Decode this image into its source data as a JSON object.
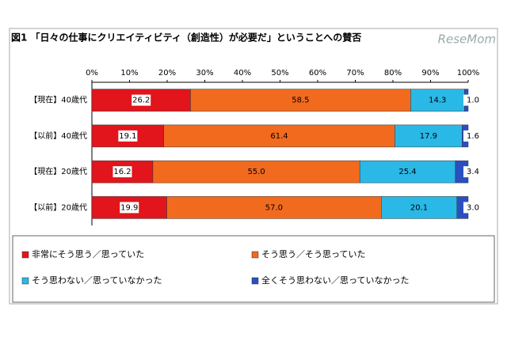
{
  "chart_data": {
    "type": "stacked-bar-horizontal",
    "title": "図1 「日々の仕事にクリエイティビティ（創造性）が必要だ」ということへの賛否",
    "watermark": "ReseMom",
    "categories": [
      "【現在】40歳代",
      "【以前】40歳代",
      "【現在】20歳代",
      "【以前】20歳代"
    ],
    "series": [
      {
        "name": "非常にそう思う／思っていた",
        "color": "#e2141c",
        "values": [
          26.2,
          19.1,
          16.2,
          19.9
        ],
        "value_labels": [
          "26.2",
          "19.1",
          "16.2",
          "19.9"
        ]
      },
      {
        "name": "そう思う／そう思っていた",
        "color": "#f26a1e",
        "values": [
          58.5,
          61.4,
          55.0,
          57.0
        ],
        "value_labels": [
          "58.5",
          "61.4",
          "55.0",
          "57.0"
        ]
      },
      {
        "name": "そう思わない／思っていなかった",
        "color": "#2ab8e6",
        "values": [
          14.3,
          17.9,
          25.4,
          20.1
        ],
        "value_labels": [
          "14.3",
          "17.9",
          "25.4",
          "20.1"
        ]
      },
      {
        "name": "全くそう思わない／思っていなかった",
        "color": "#2a4fc0",
        "values": [
          1.0,
          1.6,
          3.4,
          3.0
        ],
        "value_labels": [
          "1.0",
          "1.6",
          "3.4",
          "3.0"
        ]
      }
    ],
    "xlim": [
      0,
      100
    ],
    "xticks": [
      {
        "value": 0,
        "label": "0%"
      },
      {
        "value": 10,
        "label": "10%"
      },
      {
        "value": 20,
        "label": "20%"
      },
      {
        "value": 30,
        "label": "30%"
      },
      {
        "value": 40,
        "label": "40%"
      },
      {
        "value": 50,
        "label": "50%"
      },
      {
        "value": 60,
        "label": "60%"
      },
      {
        "value": 70,
        "label": "70%"
      },
      {
        "value": 80,
        "label": "80%"
      },
      {
        "value": 90,
        "label": "90%"
      },
      {
        "value": 100,
        "label": "100%"
      }
    ]
  }
}
